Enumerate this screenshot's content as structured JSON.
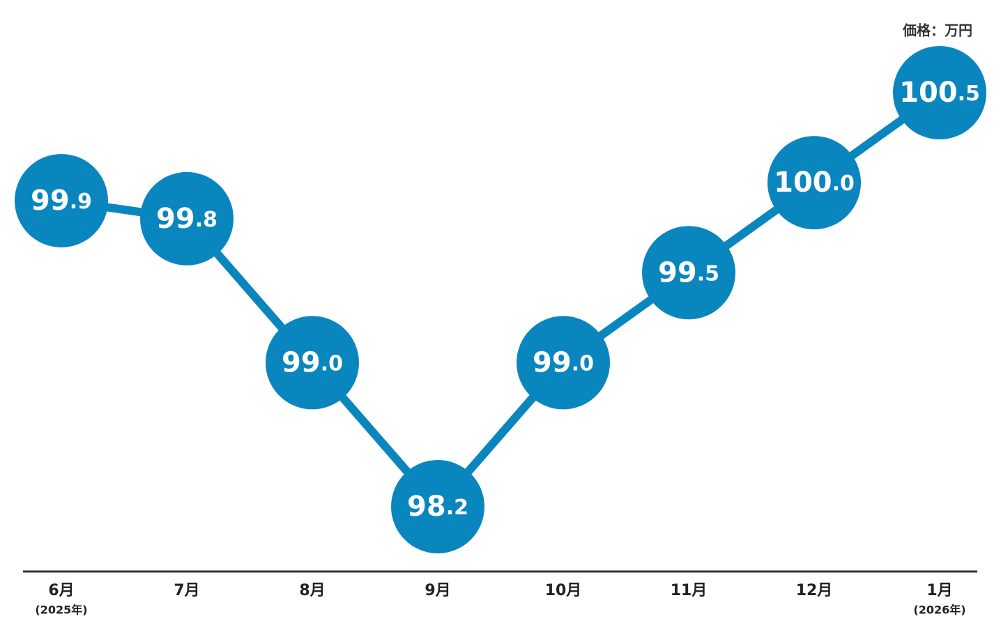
{
  "chart_data": {
    "type": "line",
    "unit_label": "価格：万円",
    "categories": [
      "6月",
      "7月",
      "8月",
      "9月",
      "10月",
      "11月",
      "12月",
      "1月"
    ],
    "category_sublabels": [
      "(2025年)",
      null,
      null,
      null,
      null,
      null,
      null,
      "(2026年)"
    ],
    "series": [
      {
        "color": "#0a86bf",
        "values": [
          99.9,
          99.8,
          99.0,
          98.2,
          99.0,
          99.5,
          100.0,
          100.5
        ],
        "value_labels": [
          "99.9",
          "99.8",
          "99.0",
          "98.2",
          "99.0",
          "99.5",
          "100.0",
          "100.5"
        ]
      }
    ]
  }
}
